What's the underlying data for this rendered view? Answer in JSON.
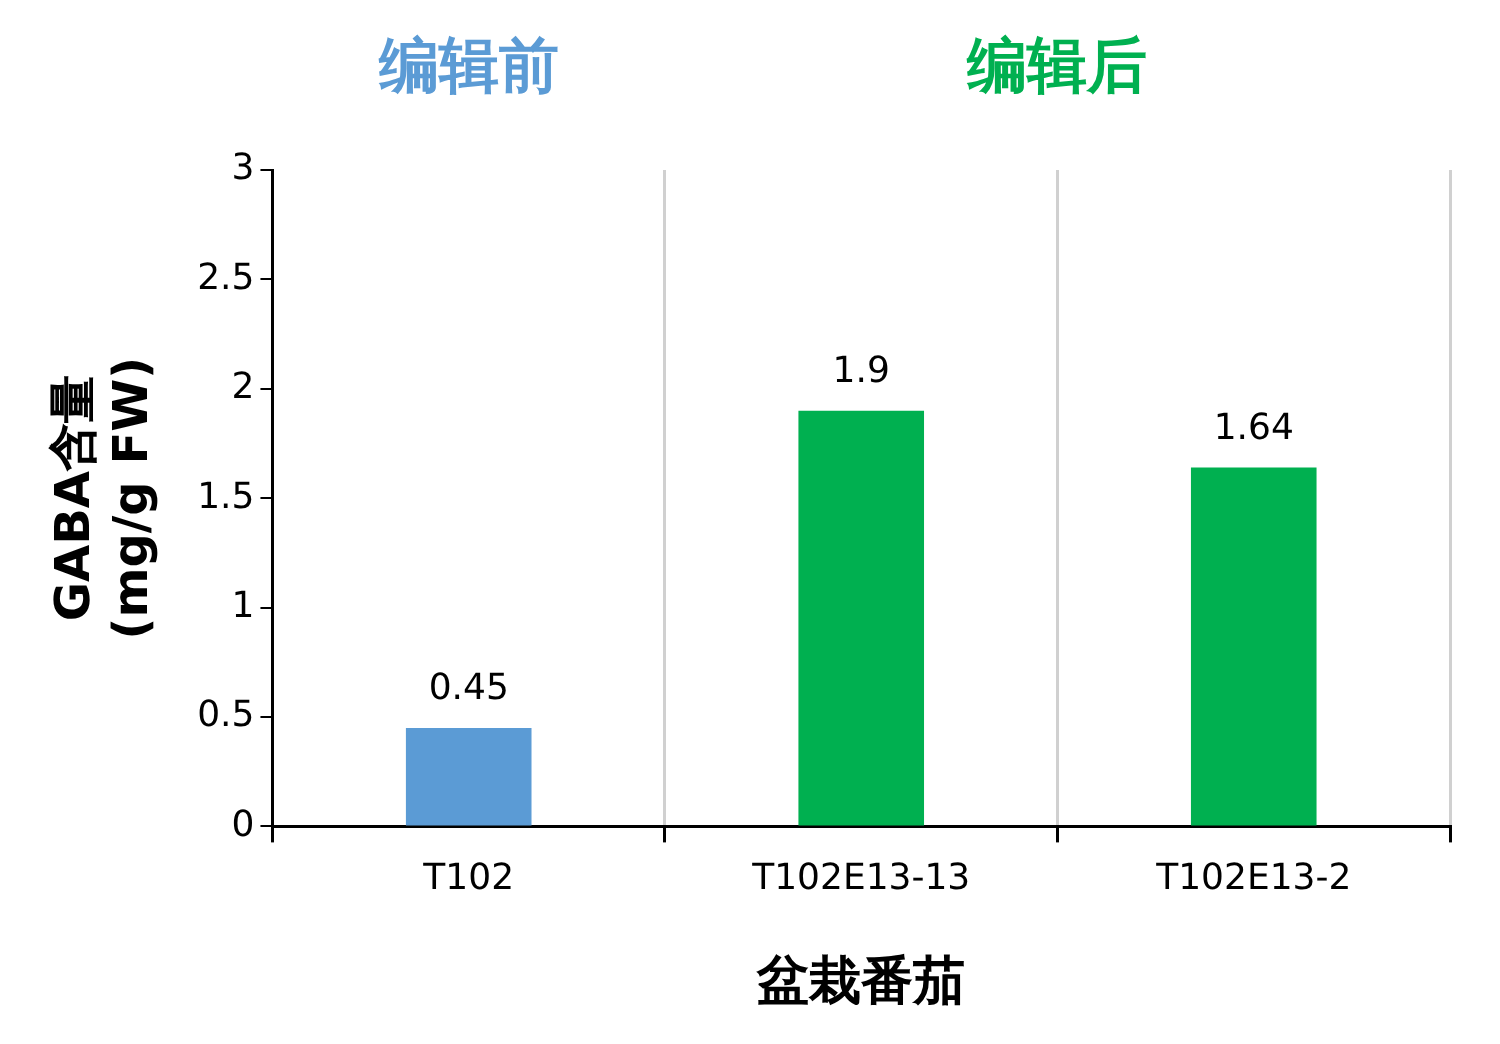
{
  "chart_data": {
    "type": "bar",
    "categories": [
      "T102",
      "T102E13-13",
      "T102E13-2"
    ],
    "values": [
      0.45,
      1.9,
      1.64
    ],
    "colors": [
      "#5b9bd5",
      "#00b050",
      "#00b050"
    ],
    "xlabel": "盆栽番茄",
    "ylabel": "GABA含量\n(mg/g FW)",
    "ylim": [
      0,
      3
    ],
    "yticks": [
      0,
      0.5,
      1,
      1.5,
      2,
      2.5,
      3
    ],
    "grid": "x",
    "legend": false,
    "data_labels": true,
    "annotations": [
      "编辑前",
      "编辑后"
    ]
  }
}
